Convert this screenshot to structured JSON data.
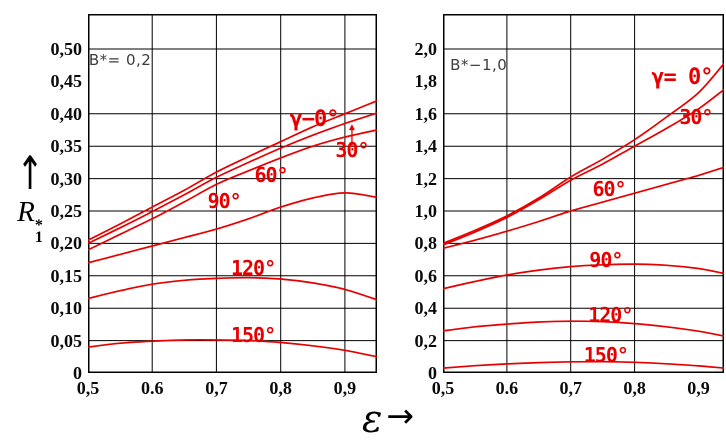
{
  "figure": {
    "y_axis_label": {
      "arrow": "↑",
      "symbol": "R",
      "sup": "*",
      "sub": "1"
    },
    "x_axis_label": {
      "symbol": "ε",
      "arrow": "→"
    },
    "colors": {
      "curve": "#e60000",
      "grid": "#000000",
      "background": "#ffffff",
      "tick_text": "#0b0b0b"
    }
  },
  "chart_data": [
    {
      "type": "line",
      "panel_label": "B*= 0,2",
      "panel_label_at": [
        0.55,
        0.483
      ],
      "xlabel": "ε",
      "ylabel": "R1*",
      "xlim": [
        0.5,
        0.95
      ],
      "ylim": [
        0,
        0.554
      ],
      "grid": "on",
      "x_ticks": [
        {
          "label": "0,5",
          "value": 0.5,
          "line": true
        },
        {
          "label": "0.6",
          "value": 0.6,
          "line": true
        },
        {
          "label": "0,7",
          "value": 0.7,
          "line": true
        },
        {
          "label": "0,8",
          "value": 0.8,
          "line": true
        },
        {
          "label": "0,9",
          "value": 0.9,
          "line": true
        }
      ],
      "y_ticks": [
        {
          "label": "0,50",
          "value": 0.5,
          "line": true
        },
        {
          "label": "0,45",
          "value": 0.45,
          "line": false
        },
        {
          "label": "0,40",
          "value": 0.4,
          "line": true
        },
        {
          "label": "0,35",
          "value": 0.35,
          "line": true
        },
        {
          "label": "0,30",
          "value": 0.3,
          "line": true
        },
        {
          "label": "0,25",
          "value": 0.25,
          "line": true
        },
        {
          "label": "0,20",
          "value": 0.2,
          "line": true
        },
        {
          "label": "0,15",
          "value": 0.15,
          "line": true
        },
        {
          "label": "0,10",
          "value": 0.1,
          "line": true
        },
        {
          "label": "0,05",
          "value": 0.05,
          "line": true
        },
        {
          "label": "0",
          "value": 0.0,
          "line": true
        }
      ],
      "x": [
        0.5,
        0.55,
        0.6,
        0.65,
        0.7,
        0.75,
        0.8,
        0.85,
        0.9,
        0.95
      ],
      "series": [
        {
          "name": "gamma-0",
          "label": "γ−0°",
          "gamma": true,
          "label_at": [
            0.852,
            0.39
          ],
          "values": [
            0.205,
            0.23,
            0.256,
            0.282,
            0.31,
            0.334,
            0.357,
            0.38,
            0.4,
            0.42
          ]
        },
        {
          "name": "gamma-30",
          "label": "30°",
          "label_at": [
            0.911,
            0.344
          ],
          "values": [
            0.2,
            0.224,
            0.249,
            0.275,
            0.302,
            0.325,
            0.347,
            0.367,
            0.385,
            0.401
          ]
        },
        {
          "name": "gamma-60",
          "label": "60°",
          "label_at": [
            0.785,
            0.306
          ],
          "values": [
            0.19,
            0.214,
            0.238,
            0.264,
            0.291,
            0.312,
            0.332,
            0.35,
            0.364,
            0.375
          ]
        },
        {
          "name": "gamma-90",
          "label": "90°",
          "label_at": [
            0.712,
            0.265
          ],
          "values": [
            0.17,
            0.183,
            0.196,
            0.209,
            0.222,
            0.238,
            0.256,
            0.27,
            0.278,
            0.271
          ]
        },
        {
          "name": "gamma-120",
          "label": "120°",
          "label_at": [
            0.757,
            0.162
          ],
          "values": [
            0.115,
            0.127,
            0.137,
            0.143,
            0.146,
            0.147,
            0.145,
            0.139,
            0.129,
            0.113
          ]
        },
        {
          "name": "gamma-150",
          "label": "150°",
          "label_at": [
            0.757,
            0.059
          ],
          "values": [
            0.04,
            0.046,
            0.049,
            0.051,
            0.051,
            0.05,
            0.047,
            0.042,
            0.035,
            0.025
          ]
        }
      ],
      "pointer_arrow": {
        "x": 0.911,
        "from": 0.349,
        "to": 0.384
      }
    },
    {
      "type": "line",
      "panel_label": "B*−1,0",
      "panel_label_at": [
        0.556,
        1.9
      ],
      "xlabel": "ε",
      "ylabel": "R1*",
      "xlim": [
        0.5,
        0.94
      ],
      "ylim": [
        0,
        2.216
      ],
      "grid": "on",
      "x_ticks": [
        {
          "label": "0,5",
          "value": 0.5,
          "line": true
        },
        {
          "label": "0.6",
          "value": 0.6,
          "line": true
        },
        {
          "label": "0,7",
          "value": 0.7,
          "line": true
        },
        {
          "label": "0,8",
          "value": 0.8,
          "line": true
        },
        {
          "label": "0,9",
          "value": 0.9,
          "line": false
        }
      ],
      "y_ticks": [
        {
          "label": "2,0",
          "value": 2.0,
          "line": true
        },
        {
          "label": "1,8",
          "value": 1.8,
          "line": false
        },
        {
          "label": "1,6",
          "value": 1.6,
          "line": true
        },
        {
          "label": "1,4",
          "value": 1.4,
          "line": true
        },
        {
          "label": "1,2",
          "value": 1.2,
          "line": true
        },
        {
          "label": "1,0",
          "value": 1.0,
          "line": true
        },
        {
          "label": "0,8",
          "value": 0.8,
          "line": true
        },
        {
          "label": "0,6",
          "value": 0.6,
          "line": true
        },
        {
          "label": "0,4",
          "value": 0.4,
          "line": true
        },
        {
          "label": "0,2",
          "value": 0.2,
          "line": true
        },
        {
          "label": "0",
          "value": 0.0,
          "line": true
        }
      ],
      "x": [
        0.5,
        0.55,
        0.6,
        0.65,
        0.7,
        0.75,
        0.8,
        0.85,
        0.9,
        0.94
      ],
      "series": [
        {
          "name": "gamma-0",
          "label": "γ= 0°",
          "gamma": true,
          "label_at": [
            0.874,
            1.82
          ],
          "values": [
            0.8,
            0.88,
            0.97,
            1.08,
            1.21,
            1.32,
            1.44,
            1.58,
            1.73,
            1.91
          ]
        },
        {
          "name": "gamma-30",
          "label": "30°",
          "label_at": [
            0.896,
            1.58
          ],
          "values": [
            0.79,
            0.87,
            0.96,
            1.07,
            1.19,
            1.29,
            1.4,
            1.51,
            1.63,
            1.75
          ]
        },
        {
          "name": "gamma-60",
          "label": "60°",
          "label_at": [
            0.76,
            1.136
          ],
          "values": [
            0.77,
            0.82,
            0.875,
            0.935,
            1.0,
            1.055,
            1.11,
            1.165,
            1.22,
            1.27
          ]
        },
        {
          "name": "gamma-90",
          "label": "90°",
          "label_at": [
            0.755,
            0.698
          ],
          "values": [
            0.52,
            0.565,
            0.605,
            0.635,
            0.657,
            0.668,
            0.672,
            0.665,
            0.645,
            0.615
          ]
        },
        {
          "name": "gamma-120",
          "label": "120°",
          "label_at": [
            0.762,
            0.358
          ],
          "values": [
            0.26,
            0.285,
            0.302,
            0.315,
            0.32,
            0.317,
            0.305,
            0.285,
            0.258,
            0.228
          ]
        },
        {
          "name": "gamma-150",
          "label": "150°",
          "label_at": [
            0.755,
            0.111
          ],
          "values": [
            0.03,
            0.045,
            0.056,
            0.064,
            0.069,
            0.07,
            0.066,
            0.057,
            0.044,
            0.03
          ]
        }
      ]
    }
  ]
}
